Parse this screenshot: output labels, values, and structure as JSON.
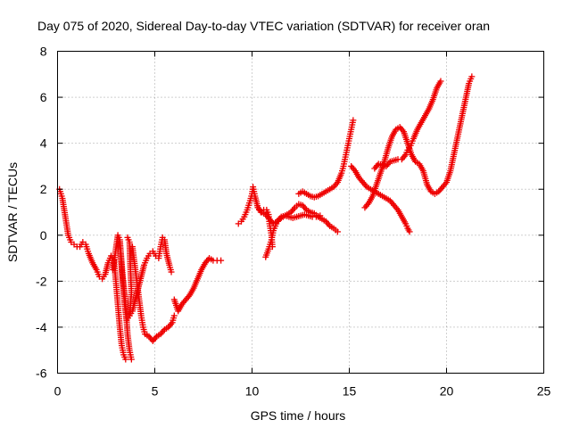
{
  "chart_data": {
    "type": "scatter",
    "title": "Day 075 of 2020, Sidereal Day-to-day VTEC variation (SDTVAR) for receiver oran",
    "xlabel": "GPS time / hours",
    "ylabel": "SDTVAR / TECUs",
    "xlim": [
      0,
      25
    ],
    "ylim": [
      -6,
      8
    ],
    "xticks": [
      "0",
      "5",
      "10",
      "15",
      "20",
      "25"
    ],
    "yticks": [
      "-6",
      "-4",
      "-2",
      "0",
      "2",
      "4",
      "6",
      "8"
    ],
    "grid": true,
    "marker": "plus",
    "color": "#ee0000",
    "series": [
      {
        "points": [
          [
            0.1,
            2.0
          ],
          [
            0.25,
            1.6
          ],
          [
            0.4,
            0.8
          ],
          [
            0.55,
            0.0
          ],
          [
            0.7,
            -0.3
          ],
          [
            0.85,
            -0.4
          ],
          [
            1.0,
            -0.5
          ],
          [
            1.15,
            -0.5
          ],
          [
            1.3,
            -0.3
          ],
          [
            1.45,
            -0.4
          ],
          [
            1.6,
            -0.8
          ],
          [
            1.8,
            -1.2
          ],
          [
            2.0,
            -1.5
          ],
          [
            2.15,
            -1.8
          ],
          [
            2.3,
            -1.9
          ],
          [
            2.45,
            -1.7
          ],
          [
            2.6,
            -1.2
          ],
          [
            2.75,
            -0.9
          ],
          [
            2.9,
            -1.1
          ],
          [
            3.0,
            -2.0
          ],
          [
            3.1,
            -3.0
          ],
          [
            3.2,
            -4.0
          ],
          [
            3.3,
            -4.8
          ],
          [
            3.4,
            -5.2
          ],
          [
            3.5,
            -5.4
          ]
        ]
      },
      {
        "points": [
          [
            2.85,
            -1.5
          ],
          [
            3.0,
            -0.6
          ],
          [
            3.1,
            0.0
          ],
          [
            3.2,
            -0.2
          ],
          [
            3.35,
            -1.8
          ],
          [
            3.5,
            -3.0
          ],
          [
            3.6,
            -4.3
          ],
          [
            3.7,
            -5.0
          ],
          [
            3.8,
            -5.4
          ]
        ]
      },
      {
        "points": [
          [
            3.2,
            -0.3
          ],
          [
            3.3,
            -1.5
          ],
          [
            3.45,
            -3.0
          ],
          [
            3.55,
            -3.7
          ],
          [
            3.7,
            -3.5
          ],
          [
            3.8,
            -2.5
          ],
          [
            3.75,
            -1.5
          ],
          [
            3.7,
            -0.3
          ],
          [
            3.6,
            -0.1
          ]
        ]
      },
      {
        "points": [
          [
            3.85,
            -0.5
          ],
          [
            4.0,
            -1.5
          ],
          [
            4.15,
            -2.5
          ],
          [
            4.3,
            -3.5
          ],
          [
            4.4,
            -4.0
          ],
          [
            4.5,
            -4.3
          ],
          [
            4.7,
            -4.4
          ],
          [
            4.9,
            -4.6
          ],
          [
            5.1,
            -4.4
          ],
          [
            5.3,
            -4.3
          ],
          [
            5.5,
            -4.1
          ],
          [
            5.7,
            -4.0
          ],
          [
            5.9,
            -3.8
          ],
          [
            6.0,
            -3.5
          ]
        ]
      },
      {
        "points": [
          [
            3.7,
            -3.5
          ],
          [
            3.85,
            -3.3
          ],
          [
            4.0,
            -2.8
          ],
          [
            4.15,
            -2.3
          ],
          [
            4.3,
            -1.8
          ],
          [
            4.45,
            -1.3
          ],
          [
            4.6,
            -1.0
          ],
          [
            4.75,
            -0.8
          ],
          [
            4.9,
            -0.7
          ],
          [
            5.05,
            -0.9
          ],
          [
            5.2,
            -1.0
          ],
          [
            5.3,
            -0.5
          ],
          [
            5.4,
            -0.1
          ],
          [
            5.5,
            -0.2
          ],
          [
            5.6,
            -0.8
          ],
          [
            5.75,
            -1.3
          ],
          [
            5.85,
            -1.6
          ]
        ]
      },
      {
        "points": [
          [
            6.0,
            -2.8
          ],
          [
            6.2,
            -3.3
          ],
          [
            6.4,
            -3.0
          ],
          [
            6.6,
            -2.8
          ],
          [
            6.8,
            -2.6
          ],
          [
            7.0,
            -2.3
          ],
          [
            7.2,
            -1.9
          ],
          [
            7.4,
            -1.5
          ],
          [
            7.6,
            -1.2
          ],
          [
            7.8,
            -1.0
          ],
          [
            8.0,
            -1.1
          ],
          [
            8.2,
            -1.1
          ],
          [
            8.4,
            -1.1
          ]
        ]
      },
      {
        "points": [
          [
            9.3,
            0.5
          ],
          [
            9.45,
            0.6
          ],
          [
            9.6,
            0.8
          ],
          [
            9.75,
            1.1
          ],
          [
            9.9,
            1.5
          ],
          [
            10.0,
            1.8
          ],
          [
            10.05,
            2.1
          ],
          [
            10.15,
            1.7
          ],
          [
            10.3,
            1.2
          ],
          [
            10.45,
            1.0
          ],
          [
            10.6,
            1.1
          ],
          [
            10.75,
            1.1
          ],
          [
            10.85,
            0.9
          ],
          [
            10.9,
            0.5
          ],
          [
            11.0,
            0.0
          ],
          [
            11.05,
            -0.5
          ]
        ]
      },
      {
        "points": [
          [
            10.7,
            -0.95
          ],
          [
            10.85,
            -0.6
          ],
          [
            11.0,
            -0.2
          ],
          [
            11.1,
            0.2
          ],
          [
            11.25,
            0.5
          ],
          [
            11.4,
            0.7
          ],
          [
            11.6,
            0.8
          ],
          [
            11.8,
            0.9
          ],
          [
            12.0,
            1.0
          ],
          [
            12.2,
            1.2
          ],
          [
            12.4,
            1.35
          ],
          [
            12.6,
            1.3
          ],
          [
            12.8,
            1.1
          ],
          [
            13.0,
            1.0
          ],
          [
            13.2,
            0.95
          ],
          [
            13.4,
            0.8
          ],
          [
            13.6,
            0.7
          ],
          [
            13.8,
            0.6
          ],
          [
            14.0,
            0.4
          ],
          [
            14.2,
            0.3
          ],
          [
            14.4,
            0.15
          ]
        ]
      },
      {
        "points": [
          [
            10.3,
            1.2
          ],
          [
            10.5,
            1.0
          ],
          [
            10.7,
            0.9
          ],
          [
            10.9,
            0.7
          ],
          [
            11.1,
            0.5
          ],
          [
            11.3,
            0.6
          ],
          [
            11.5,
            0.8
          ],
          [
            11.7,
            0.85
          ],
          [
            11.9,
            0.8
          ],
          [
            12.1,
            0.75
          ],
          [
            12.3,
            0.8
          ],
          [
            12.5,
            0.85
          ],
          [
            12.7,
            0.9
          ],
          [
            12.9,
            0.85
          ],
          [
            13.1,
            0.8
          ],
          [
            13.3,
            0.8
          ],
          [
            13.5,
            0.85
          ]
        ]
      },
      {
        "points": [
          [
            12.4,
            1.8
          ],
          [
            12.6,
            1.9
          ],
          [
            12.8,
            1.8
          ],
          [
            13.0,
            1.7
          ],
          [
            13.2,
            1.65
          ],
          [
            13.4,
            1.7
          ],
          [
            13.6,
            1.8
          ],
          [
            13.8,
            1.9
          ],
          [
            14.0,
            2.0
          ],
          [
            14.2,
            2.1
          ],
          [
            14.4,
            2.3
          ],
          [
            14.6,
            2.7
          ],
          [
            14.7,
            3.0
          ],
          [
            14.8,
            3.4
          ],
          [
            14.9,
            3.8
          ],
          [
            15.0,
            4.2
          ],
          [
            15.1,
            4.6
          ],
          [
            15.2,
            5.0
          ]
        ]
      },
      {
        "points": [
          [
            15.1,
            3.0
          ],
          [
            15.3,
            2.8
          ],
          [
            15.5,
            2.5
          ],
          [
            15.7,
            2.3
          ],
          [
            15.9,
            2.1
          ],
          [
            16.1,
            2.0
          ],
          [
            16.3,
            1.9
          ],
          [
            16.5,
            1.8
          ],
          [
            16.7,
            1.7
          ],
          [
            16.9,
            1.6
          ],
          [
            17.1,
            1.5
          ],
          [
            17.3,
            1.3
          ],
          [
            17.5,
            1.1
          ],
          [
            17.7,
            0.8
          ],
          [
            17.9,
            0.5
          ],
          [
            18.0,
            0.3
          ],
          [
            18.1,
            0.15
          ]
        ]
      },
      {
        "points": [
          [
            15.8,
            1.2
          ],
          [
            16.0,
            1.4
          ],
          [
            16.2,
            1.7
          ],
          [
            16.4,
            2.2
          ],
          [
            16.6,
            2.7
          ],
          [
            16.8,
            3.2
          ],
          [
            17.0,
            3.8
          ],
          [
            17.2,
            4.3
          ],
          [
            17.4,
            4.6
          ],
          [
            17.6,
            4.7
          ],
          [
            17.8,
            4.5
          ],
          [
            18.0,
            4.0
          ],
          [
            18.2,
            3.5
          ],
          [
            18.4,
            3.2
          ],
          [
            18.6,
            3.1
          ],
          [
            18.8,
            2.8
          ],
          [
            19.0,
            2.2
          ],
          [
            19.2,
            1.9
          ],
          [
            19.4,
            1.8
          ],
          [
            19.6,
            1.9
          ],
          [
            19.8,
            2.1
          ],
          [
            20.0,
            2.3
          ],
          [
            20.2,
            2.8
          ],
          [
            20.4,
            3.6
          ],
          [
            20.6,
            4.4
          ],
          [
            20.8,
            5.2
          ],
          [
            21.0,
            6.0
          ],
          [
            21.15,
            6.6
          ],
          [
            21.3,
            6.9
          ]
        ]
      },
      {
        "points": [
          [
            16.3,
            2.9
          ],
          [
            16.5,
            3.1
          ],
          [
            16.7,
            3.05
          ],
          [
            16.9,
            3.0
          ],
          [
            17.1,
            3.2
          ],
          [
            17.3,
            3.25
          ],
          [
            17.5,
            3.3
          ],
          [
            17.7,
            3.3
          ],
          [
            17.9,
            3.5
          ],
          [
            18.0,
            3.7
          ],
          [
            18.15,
            3.9
          ],
          [
            18.3,
            4.2
          ],
          [
            18.5,
            4.6
          ],
          [
            18.7,
            4.9
          ],
          [
            18.9,
            5.2
          ],
          [
            19.1,
            5.5
          ],
          [
            19.3,
            5.9
          ],
          [
            19.5,
            6.4
          ],
          [
            19.7,
            6.7
          ]
        ]
      }
    ]
  }
}
